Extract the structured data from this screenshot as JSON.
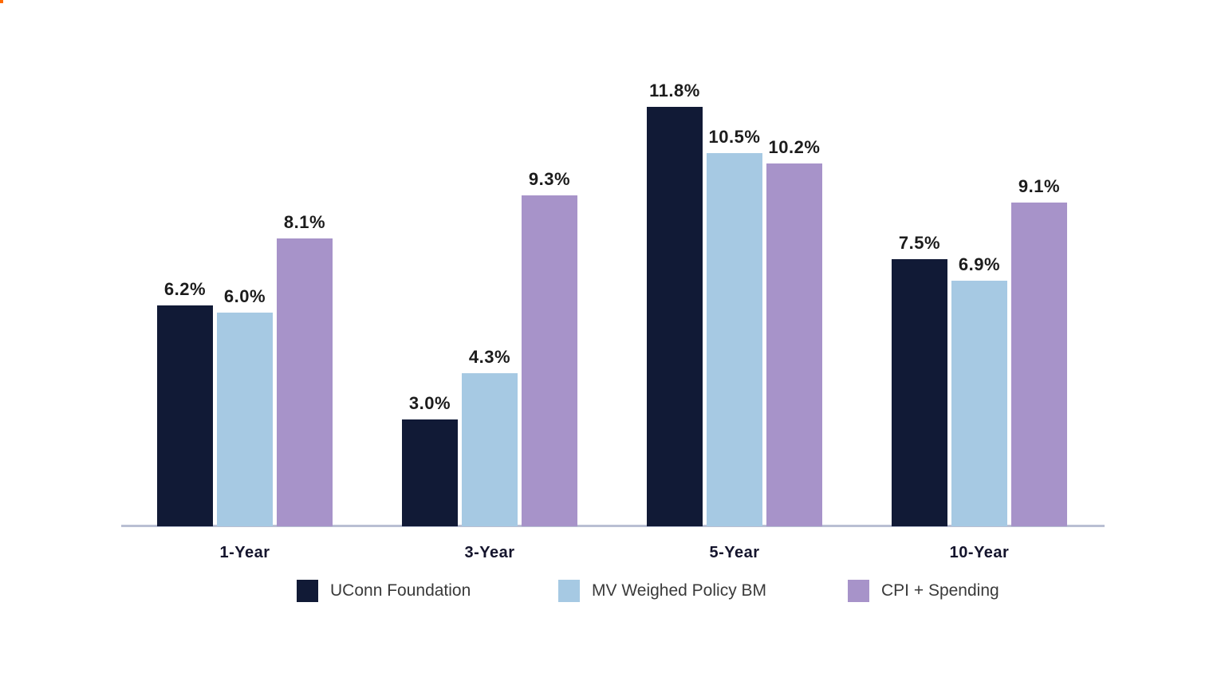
{
  "chart_data": {
    "type": "bar",
    "categories": [
      "1-Year",
      "3-Year",
      "5-Year",
      "10-Year"
    ],
    "series": [
      {
        "name": "UConn Foundation",
        "color": "#111A36",
        "values": [
          6.2,
          3.0,
          11.8,
          7.5
        ]
      },
      {
        "name": "MV Weighed Policy BM",
        "color": "#A6C9E3",
        "values": [
          6.0,
          4.3,
          10.5,
          6.9
        ]
      },
      {
        "name": "CPI + Spending",
        "color": "#A793C9",
        "values": [
          8.1,
          9.3,
          10.2,
          9.1
        ]
      }
    ],
    "value_label_format": "{value}%",
    "value_labels": [
      [
        "6.2%",
        "6.0%",
        "8.1%"
      ],
      [
        "3.0%",
        "4.3%",
        "9.3%"
      ],
      [
        "11.8%",
        "10.5%",
        "10.2%"
      ],
      [
        "7.5%",
        "6.9%",
        "9.1%"
      ]
    ],
    "title": "",
    "xlabel": "",
    "ylabel": "",
    "ylim": [
      0,
      12.5
    ],
    "grid": false,
    "legend_position": "bottom"
  },
  "colors": {
    "background": "#FFFFFF",
    "axis_line": "#B9BFD3",
    "value_label_text": "#1C1C1C",
    "category_label_text": "#14142C",
    "legend_text": "#3A3A3A",
    "corner_artifact": "#FF6A00"
  }
}
